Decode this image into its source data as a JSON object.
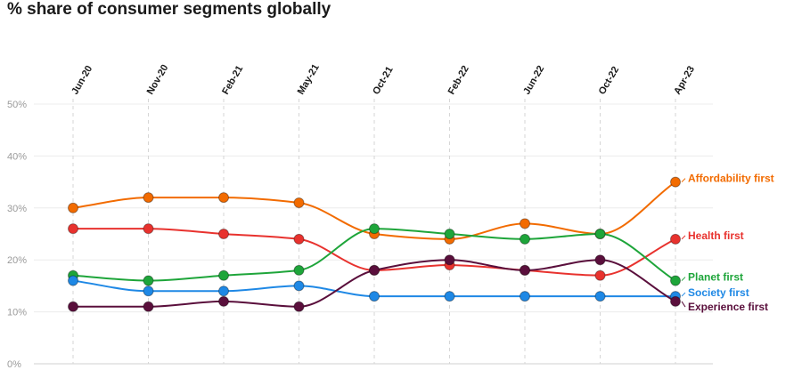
{
  "chart_data": {
    "type": "line",
    "title": "% share of consumer segments globally",
    "categories": [
      "Jun-20",
      "Nov-20",
      "Feb-21",
      "May-21",
      "Oct-21",
      "Feb-22",
      "Jun-22",
      "Oct-22",
      "Apr-23"
    ],
    "ylim": [
      0,
      50
    ],
    "yticks": [
      "0%",
      "10%",
      "20%",
      "30%",
      "40%",
      "50%"
    ],
    "grid": true,
    "legend": "labels at line ends (right)",
    "series": [
      {
        "name": "Affordability first",
        "color": "#f26b00",
        "values": [
          30,
          32,
          32,
          31,
          25,
          24,
          27,
          25,
          35
        ]
      },
      {
        "name": "Health first",
        "color": "#e8322e",
        "values": [
          26,
          26,
          25,
          24,
          18,
          19,
          18,
          17,
          24
        ]
      },
      {
        "name": "Planet first",
        "color": "#1ea53a",
        "values": [
          17,
          16,
          17,
          18,
          26,
          25,
          24,
          25,
          16
        ]
      },
      {
        "name": "Society first",
        "color": "#1e88e5",
        "values": [
          16,
          14,
          14,
          15,
          13,
          13,
          13,
          13,
          13
        ]
      },
      {
        "name": "Experience first",
        "color": "#5a0f3c",
        "values": [
          11,
          11,
          12,
          11,
          18,
          20,
          18,
          20,
          12
        ]
      }
    ]
  }
}
